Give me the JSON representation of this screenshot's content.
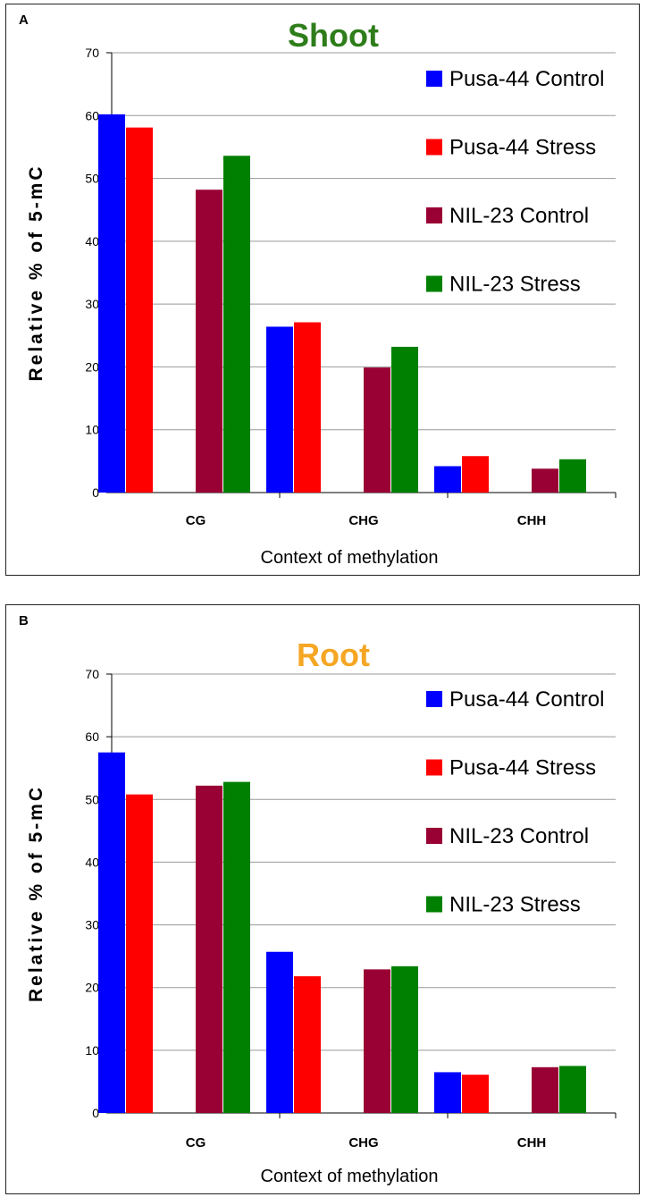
{
  "colors": {
    "pusa_control": "#0000FF",
    "pusa_stress": "#FF0000",
    "nil_control": "#990033",
    "nil_stress": "#008000",
    "title_shoot": "#2E7D1A",
    "title_root": "#F5A623",
    "grid": "#999999"
  },
  "chart_data": [
    {
      "type": "bar",
      "panel_label": "A",
      "title": "Shoot",
      "xlabel": "Context of methylation",
      "ylabel": "Relative % of 5-mC",
      "ylim": [
        0,
        70
      ],
      "yticks": [
        0,
        10,
        20,
        30,
        40,
        50,
        60,
        70
      ],
      "categories": [
        "CG",
        "CHG",
        "CHH"
      ],
      "series": [
        {
          "name": "Pusa-44 Control",
          "color_key": "pusa_control",
          "values": [
            60.2,
            26.4,
            4.2
          ]
        },
        {
          "name": "Pusa-44 Stress",
          "color_key": "pusa_stress",
          "values": [
            58.1,
            27.1,
            5.8
          ]
        },
        {
          "name": "NIL-23 Control",
          "color_key": "nil_control",
          "values": [
            48.2,
            19.9,
            3.8
          ]
        },
        {
          "name": "NIL-23 Stress",
          "color_key": "nil_stress",
          "values": [
            53.6,
            23.2,
            5.3
          ]
        }
      ],
      "legend_position": "top-right",
      "grid": true
    },
    {
      "type": "bar",
      "panel_label": "B",
      "title": "Root",
      "xlabel": "Context of methylation",
      "ylabel": "Relative % of 5-mC",
      "ylim": [
        0,
        70
      ],
      "yticks": [
        0,
        10,
        20,
        30,
        40,
        50,
        60,
        70
      ],
      "categories": [
        "CG",
        "CHG",
        "CHH"
      ],
      "series": [
        {
          "name": "Pusa-44 Control",
          "color_key": "pusa_control",
          "values": [
            57.5,
            25.7,
            6.5
          ]
        },
        {
          "name": "Pusa-44 Stress",
          "color_key": "pusa_stress",
          "values": [
            50.8,
            21.8,
            6.1
          ]
        },
        {
          "name": "NIL-23 Control",
          "color_key": "nil_control",
          "values": [
            52.2,
            22.9,
            7.3
          ]
        },
        {
          "name": "NIL-23 Stress",
          "color_key": "nil_stress",
          "values": [
            52.8,
            23.4,
            7.5
          ]
        }
      ],
      "legend_position": "top-right",
      "grid": true
    }
  ]
}
